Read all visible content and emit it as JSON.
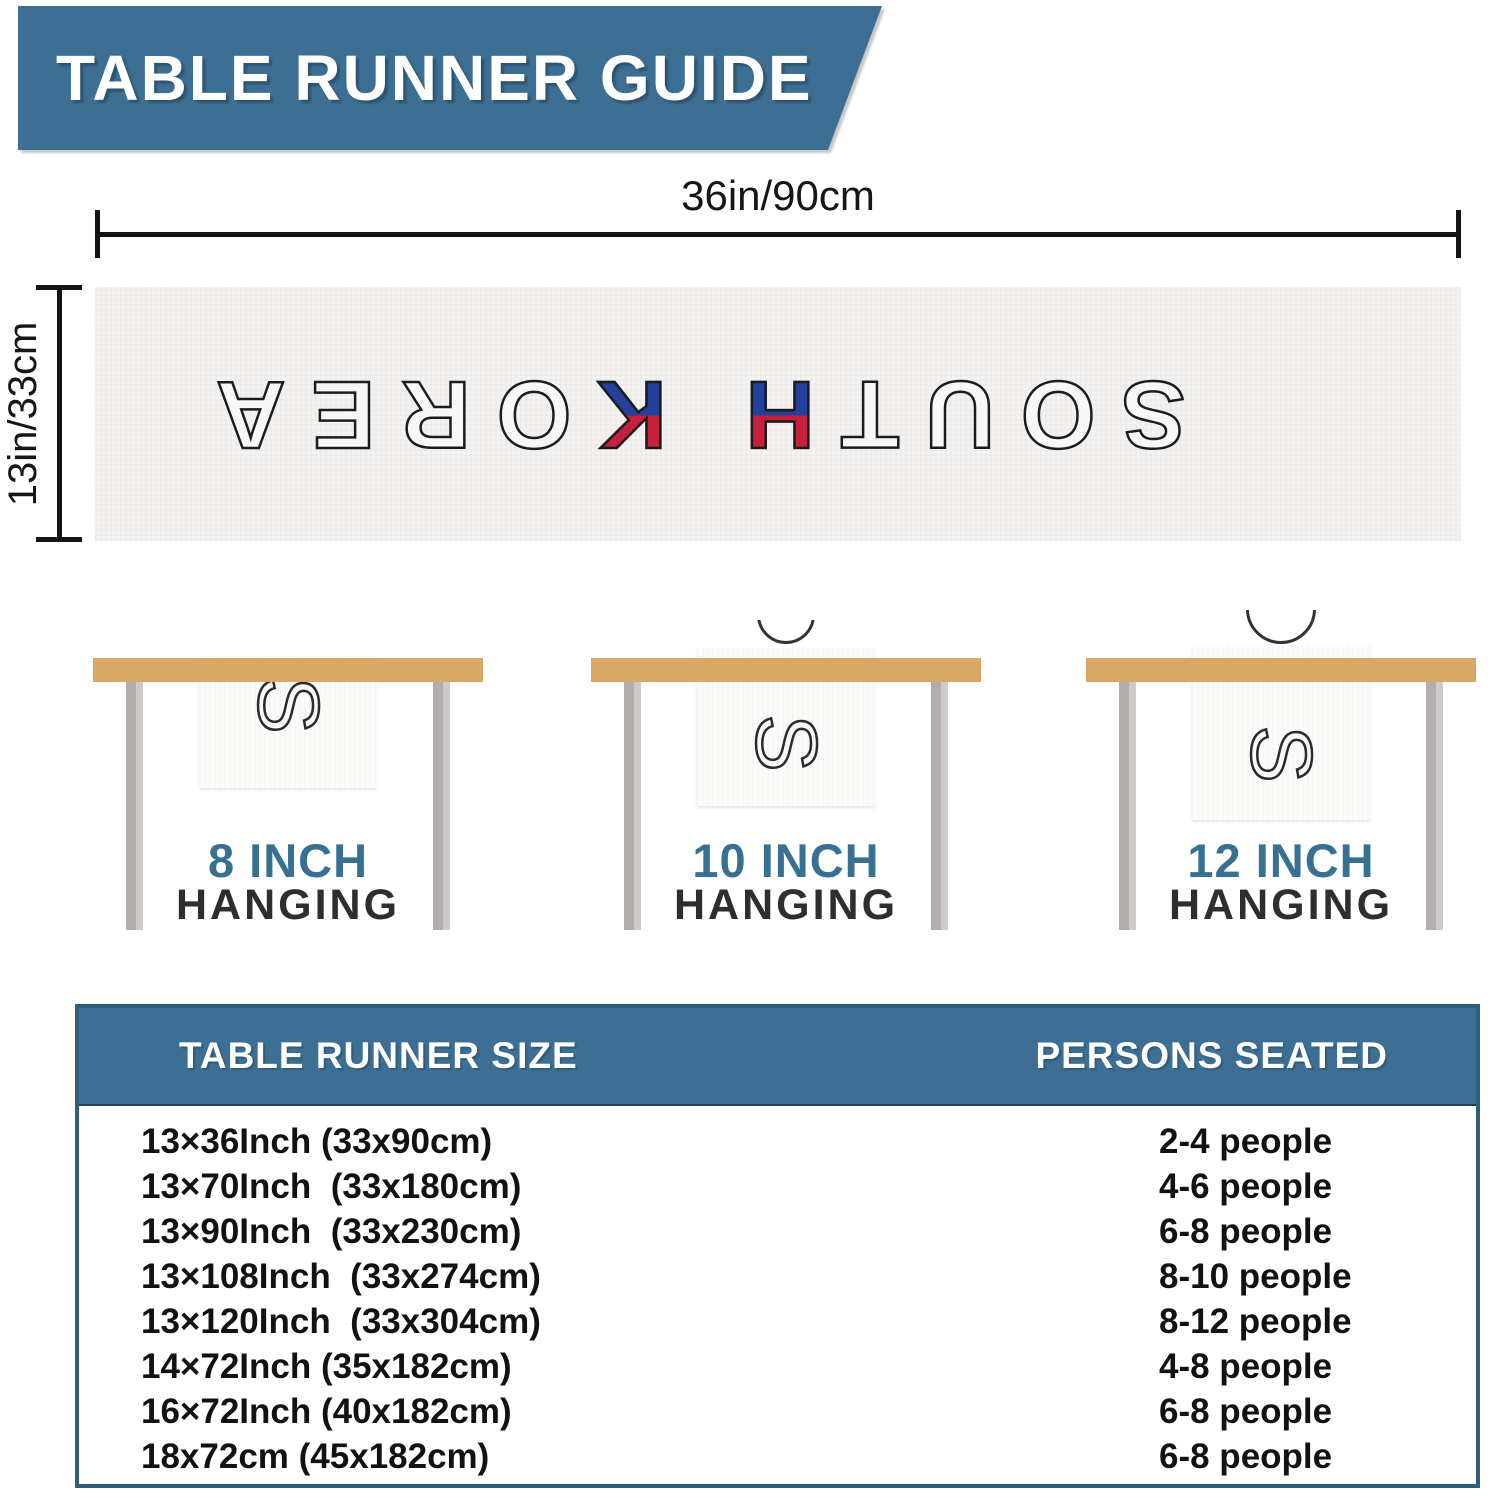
{
  "banner": {
    "title": "TABLE RUNNER GUIDE",
    "bg": "#3c6f93"
  },
  "runner_diagram": {
    "width_label": "36in/90cm",
    "height_label": "13in/33cm",
    "word": "SOUTH KOREA",
    "word_parts": [
      {
        "text": "SOUT",
        "colored": false
      },
      {
        "text": "H",
        "colored": true
      },
      {
        "text": " ",
        "colored": false
      },
      {
        "text": "K",
        "colored": true
      },
      {
        "text": "OREA",
        "colored": false
      }
    ],
    "flag_red": "#c6203d",
    "flag_blue": "#23409c"
  },
  "hanging_examples": [
    {
      "inches": "8 INCH",
      "hanging": "HANGING",
      "letter": "S"
    },
    {
      "inches": "10 INCH",
      "hanging": "HANGING",
      "letter": "S"
    },
    {
      "inches": "12 INCH",
      "hanging": "HANGING",
      "letter": "S"
    }
  ],
  "size_table": {
    "col1_header": "TABLE RUNNER SIZE",
    "col2_header": "PERSONS SEATED",
    "rows": [
      {
        "size": "13×36Inch (33x90cm)",
        "persons": "2-4 people"
      },
      {
        "size": "13×70Inch  (33x180cm)",
        "persons": "4-6 people"
      },
      {
        "size": "13×90Inch  (33x230cm)",
        "persons": "6-8 people"
      },
      {
        "size": "13×108Inch  (33x274cm)",
        "persons": "8-10 people"
      },
      {
        "size": "13×120Inch  (33x304cm)",
        "persons": "8-12 people"
      },
      {
        "size": "14×72Inch (35x182cm)",
        "persons": "4-8 people"
      },
      {
        "size": "16×72Inch (40x182cm)",
        "persons": "6-8 people"
      },
      {
        "size": "18x72cm (45x182cm)",
        "persons": "6-8 people"
      }
    ]
  },
  "colors": {
    "banner_bg": "#3c6f93",
    "table_border": "#2d5e7c",
    "teal_text": "#377090",
    "wood": "#d9a867",
    "leg_gray": "#b9b3b3"
  }
}
